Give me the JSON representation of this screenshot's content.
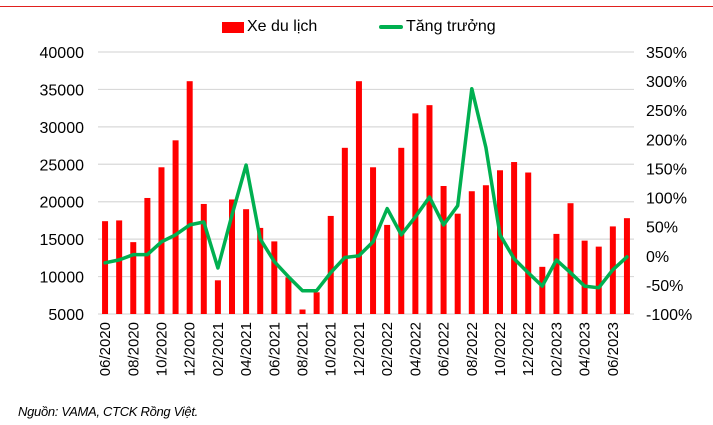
{
  "legend": {
    "bar_label": "Xe du lịch",
    "line_label": "Tăng trưởng"
  },
  "source_note": "Nguồn: VAMA, CTCK Rồng Việt.",
  "colors": {
    "bar": "#ff0000",
    "line": "#00b050",
    "grid": "#d9d9d9",
    "top_rule": "#e0201e"
  },
  "chart_data": {
    "type": "bar+line",
    "title": "",
    "xlabel": "",
    "ylabel": "",
    "y2label": "",
    "grid": true,
    "legend_position": "top",
    "categories": [
      "06/2020",
      "07/2020",
      "08/2020",
      "09/2020",
      "10/2020",
      "11/2020",
      "12/2020",
      "01/2021",
      "02/2021",
      "03/2021",
      "04/2021",
      "05/2021",
      "06/2021",
      "07/2021",
      "08/2021",
      "09/2021",
      "10/2021",
      "11/2021",
      "12/2021",
      "01/2022",
      "02/2022",
      "03/2022",
      "04/2022",
      "05/2022",
      "06/2022",
      "07/2022",
      "08/2022",
      "09/2022",
      "10/2022",
      "11/2022",
      "12/2022",
      "01/2023",
      "02/2023",
      "03/2023",
      "04/2023",
      "05/2023",
      "06/2023",
      "07/2023"
    ],
    "x_tick_labels": [
      "06/2020",
      "08/2020",
      "10/2020",
      "12/2020",
      "02/2021",
      "04/2021",
      "06/2021",
      "08/2021",
      "10/2021",
      "12/2021",
      "02/2022",
      "04/2022",
      "06/2022",
      "08/2022",
      "10/2022",
      "12/2022",
      "02/2023",
      "04/2023",
      "06/2023"
    ],
    "series": [
      {
        "name": "Xe du lịch",
        "type": "bar",
        "axis": "left",
        "values": [
          17400,
          17500,
          14600,
          20500,
          24600,
          28200,
          36100,
          19700,
          9500,
          20300,
          19000,
          16500,
          14700,
          9900,
          5600,
          7900,
          18100,
          27200,
          36100,
          24600,
          16900,
          27200,
          31800,
          32900,
          22100,
          18400,
          21400,
          22200,
          24200,
          25300,
          23900,
          11300,
          15700,
          19800,
          14800,
          14000,
          16700,
          17800
        ]
      },
      {
        "name": "Tăng trưởng",
        "type": "line",
        "axis": "right",
        "unit": "%",
        "values": [
          -12,
          -7,
          2,
          2,
          24,
          36,
          53,
          58,
          -21,
          70,
          156,
          29,
          -10,
          -36,
          -60,
          -60,
          -29,
          -3,
          0,
          24,
          81,
          36,
          67,
          101,
          53,
          86,
          287,
          186,
          36,
          -5,
          -29,
          -52,
          -7,
          -29,
          -52,
          -55,
          -24,
          -2
        ]
      }
    ],
    "ylim": [
      5000,
      40000
    ],
    "y_ticks": [
      5000,
      10000,
      15000,
      20000,
      25000,
      30000,
      35000,
      40000
    ],
    "y_tick_labels": [
      "5000",
      "10000",
      "15000",
      "20000",
      "25000",
      "30000",
      "35000",
      "40000"
    ],
    "y2lim": [
      -100,
      350
    ],
    "y2_ticks": [
      -100,
      -50,
      0,
      50,
      100,
      150,
      200,
      250,
      300,
      350
    ],
    "y2_tick_labels": [
      "-100%",
      "-50%",
      "0%",
      "50%",
      "100%",
      "150%",
      "200%",
      "250%",
      "300%",
      "350%"
    ]
  }
}
